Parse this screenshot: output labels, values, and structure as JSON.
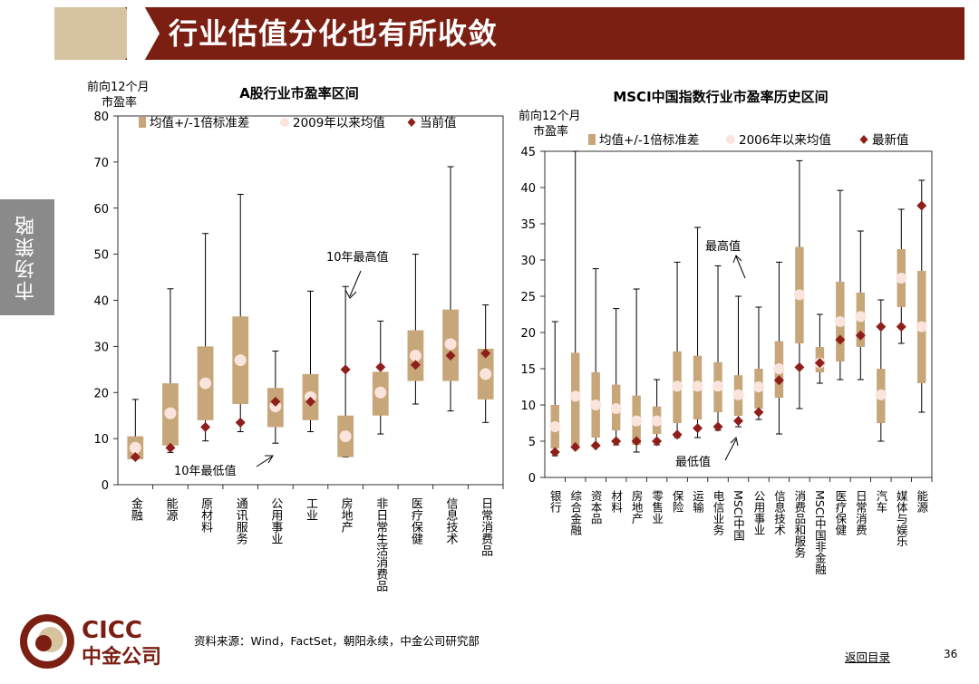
{
  "header": {
    "title": "行业估值分化也有所收敛"
  },
  "side_tab": "市场策略",
  "footer": {
    "source": "资料来源：Wind，FactSet，朝阳永续，中金公司研究部",
    "back_link": "返回目录",
    "page_number": "36",
    "logo_en": "CICC",
    "logo_cn": "中金公司"
  },
  "colors": {
    "box": "#c7a77a",
    "mean": "#fbe4dc",
    "current": "#8e1f1a",
    "whisker": "#000000",
    "header": "#7b1f13",
    "accent": "#d6c39f"
  },
  "chart_data": [
    {
      "type": "boxplot",
      "title": "A股行业市盈率区间",
      "ylabel": "前向12个月\n市盈率",
      "ylim": [
        0,
        80
      ],
      "yticks": [
        0,
        10,
        20,
        30,
        40,
        50,
        60,
        70,
        80
      ],
      "legend": [
        "均值+/-1倍标准差",
        "2009年以来均值",
        "当前值"
      ],
      "annotations": [
        "10年最高值",
        "10年最低值"
      ],
      "categories": [
        "金融",
        "能源",
        "原材料",
        "通讯服务",
        "公用事业",
        "工业",
        "房地产",
        "非日常生活消费品",
        "医疗保健",
        "信息技术",
        "日常消费品"
      ],
      "min": [
        6.0,
        7.0,
        9.5,
        11.5,
        9.0,
        11.5,
        6.0,
        11.0,
        17.5,
        16.0,
        13.5
      ],
      "max": [
        18.5,
        42.5,
        54.5,
        63.0,
        29.0,
        42.0,
        43.0,
        35.5,
        50.0,
        69.0,
        39.0
      ],
      "box_low": [
        5.5,
        8.5,
        14.0,
        17.5,
        12.5,
        14.0,
        6.0,
        15.0,
        22.5,
        22.5,
        18.5
      ],
      "box_high": [
        10.5,
        22.0,
        30.0,
        36.5,
        21.0,
        24.0,
        15.0,
        24.5,
        33.5,
        38.0,
        29.5
      ],
      "mean": [
        8.0,
        15.5,
        22.0,
        27.0,
        17.0,
        19.0,
        10.5,
        20.0,
        28.0,
        30.5,
        24.0
      ],
      "current": [
        6.0,
        8.0,
        12.5,
        13.5,
        18.0,
        18.0,
        25.0,
        25.5,
        26.0,
        28.0,
        28.5
      ]
    },
    {
      "type": "boxplot",
      "title": "MSCI中国指数行业市盈率历史区间",
      "ylabel": "前向12个月\n市盈率",
      "ylim": [
        0,
        45
      ],
      "yticks": [
        0,
        5,
        10,
        15,
        20,
        25,
        30,
        35,
        40,
        45
      ],
      "legend": [
        "均值+/-1倍标准差",
        "2006年以来均值",
        "最新值"
      ],
      "annotations": [
        "最高值",
        "最低值"
      ],
      "categories": [
        "银行",
        "综合金融",
        "资本品",
        "材料",
        "房地产",
        "零售业",
        "保险",
        "运输",
        "电信业务",
        "MSCI中国",
        "公用事业",
        "信息技术",
        "消费品和服务",
        "MSCI中国非金融",
        "医疗保健",
        "日常消费",
        "汽车",
        "媒体与娱乐",
        "能源"
      ],
      "min": [
        3.0,
        4.0,
        4.5,
        4.5,
        3.5,
        4.5,
        5.5,
        5.5,
        6.5,
        7.0,
        8.0,
        6.0,
        9.5,
        13.0,
        13.5,
        13.5,
        5.0,
        18.5,
        9.0
      ],
      "max": [
        21.5,
        45.0,
        28.8,
        23.3,
        26.0,
        13.5,
        29.7,
        34.5,
        29.2,
        25.0,
        23.5,
        29.7,
        43.7,
        22.5,
        39.6,
        34.0,
        24.5,
        37.0,
        41.0
      ],
      "box_low": [
        4.0,
        4.5,
        5.5,
        6.5,
        4.5,
        6.0,
        7.5,
        8.0,
        9.0,
        8.5,
        9.5,
        11.0,
        18.5,
        14.5,
        16.0,
        18.0,
        7.5,
        23.5,
        13.0
      ],
      "box_high": [
        10.0,
        17.2,
        14.5,
        12.8,
        11.3,
        9.8,
        17.4,
        16.8,
        15.9,
        14.1,
        15.0,
        18.8,
        31.8,
        18.0,
        27.0,
        25.5,
        15.0,
        31.5,
        28.5
      ],
      "mean": [
        7.0,
        11.2,
        10.0,
        9.5,
        7.8,
        7.8,
        12.6,
        12.6,
        12.6,
        11.4,
        12.5,
        15.0,
        25.2,
        15.8,
        21.5,
        22.2,
        11.4,
        27.5,
        20.8
      ],
      "current": [
        3.5,
        4.2,
        4.4,
        5.0,
        5.0,
        5.0,
        5.9,
        6.8,
        7.0,
        7.8,
        9.0,
        13.4,
        15.2,
        15.8,
        19.0,
        19.6,
        20.8,
        20.8,
        37.5
      ]
    }
  ]
}
